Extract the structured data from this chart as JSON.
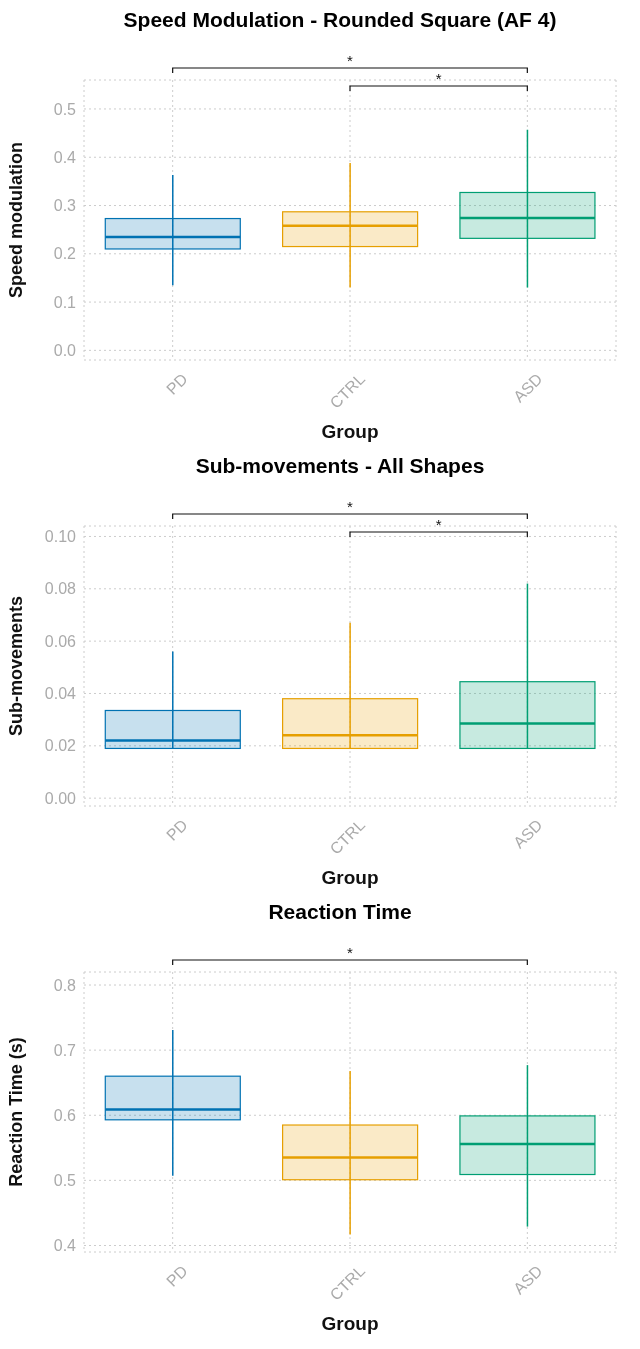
{
  "chart_data": [
    {
      "type": "box",
      "title": "Speed Modulation - Rounded Square (AF 4)",
      "xlabel": "Group",
      "ylabel": "Speed modulation",
      "categories": [
        "PD",
        "CTRL",
        "ASD"
      ],
      "ylim": [
        -0.02,
        0.56
      ],
      "yticks": [
        {
          "value": 0,
          "label": "0.0"
        },
        {
          "value": 0.1,
          "label": "0.1"
        },
        {
          "value": 0.2,
          "label": "0.2"
        },
        {
          "value": 0.3,
          "label": "0.3"
        },
        {
          "value": 0.4,
          "label": "0.4"
        },
        {
          "value": 0.5,
          "label": "0.5"
        }
      ],
      "grid": true,
      "legend": false,
      "colors": [
        "#0072b2",
        "#e69f00",
        "#009e73"
      ],
      "boxes": [
        {
          "low": 0.135,
          "q1": 0.21,
          "median": 0.235,
          "q3": 0.273,
          "high": 0.363
        },
        {
          "low": 0.13,
          "q1": 0.215,
          "median": 0.258,
          "q3": 0.287,
          "high": 0.388
        },
        {
          "low": 0.13,
          "q1": 0.232,
          "median": 0.274,
          "q3": 0.327,
          "high": 0.457
        }
      ],
      "annotations": [
        "*",
        "*"
      ]
    },
    {
      "type": "box",
      "title": "Sub-movements - All Shapes",
      "xlabel": "Group",
      "ylabel": "Sub-movements",
      "categories": [
        "PD",
        "CTRL",
        "ASD"
      ],
      "ylim": [
        -0.003,
        0.104
      ],
      "yticks": [
        {
          "value": 0,
          "label": "0.00"
        },
        {
          "value": 0.02,
          "label": "0.02"
        },
        {
          "value": 0.04,
          "label": "0.04"
        },
        {
          "value": 0.06,
          "label": "0.06"
        },
        {
          "value": 0.08,
          "label": "0.08"
        },
        {
          "value": 0.1,
          "label": "0.10"
        }
      ],
      "grid": true,
      "legend": false,
      "colors": [
        "#0072b2",
        "#e69f00",
        "#009e73"
      ],
      "boxes": [
        {
          "low": 0.019,
          "q1": 0.019,
          "median": 0.022,
          "q3": 0.0335,
          "high": 0.056
        },
        {
          "low": 0.019,
          "q1": 0.019,
          "median": 0.024,
          "q3": 0.038,
          "high": 0.067
        },
        {
          "low": 0.019,
          "q1": 0.019,
          "median": 0.0285,
          "q3": 0.0445,
          "high": 0.082
        }
      ],
      "annotations": [
        "*",
        "*"
      ]
    },
    {
      "type": "box",
      "title": "Reaction Time",
      "xlabel": "Group",
      "ylabel": "Reaction Time (s)",
      "categories": [
        "PD",
        "CTRL",
        "ASD"
      ],
      "ylim": [
        0.39,
        0.82
      ],
      "yticks": [
        {
          "value": 0.4,
          "label": "0.4"
        },
        {
          "value": 0.5,
          "label": "0.5"
        },
        {
          "value": 0.6,
          "label": "0.6"
        },
        {
          "value": 0.7,
          "label": "0.7"
        },
        {
          "value": 0.8,
          "label": "0.8"
        }
      ],
      "grid": true,
      "legend": false,
      "colors": [
        "#0072b2",
        "#e69f00",
        "#009e73"
      ],
      "boxes": [
        {
          "low": 0.507,
          "q1": 0.593,
          "median": 0.609,
          "q3": 0.66,
          "high": 0.731
        },
        {
          "low": 0.417,
          "q1": 0.501,
          "median": 0.535,
          "q3": 0.585,
          "high": 0.668
        },
        {
          "low": 0.429,
          "q1": 0.509,
          "median": 0.556,
          "q3": 0.599,
          "high": 0.677
        }
      ],
      "annotations": [
        "*"
      ]
    }
  ]
}
